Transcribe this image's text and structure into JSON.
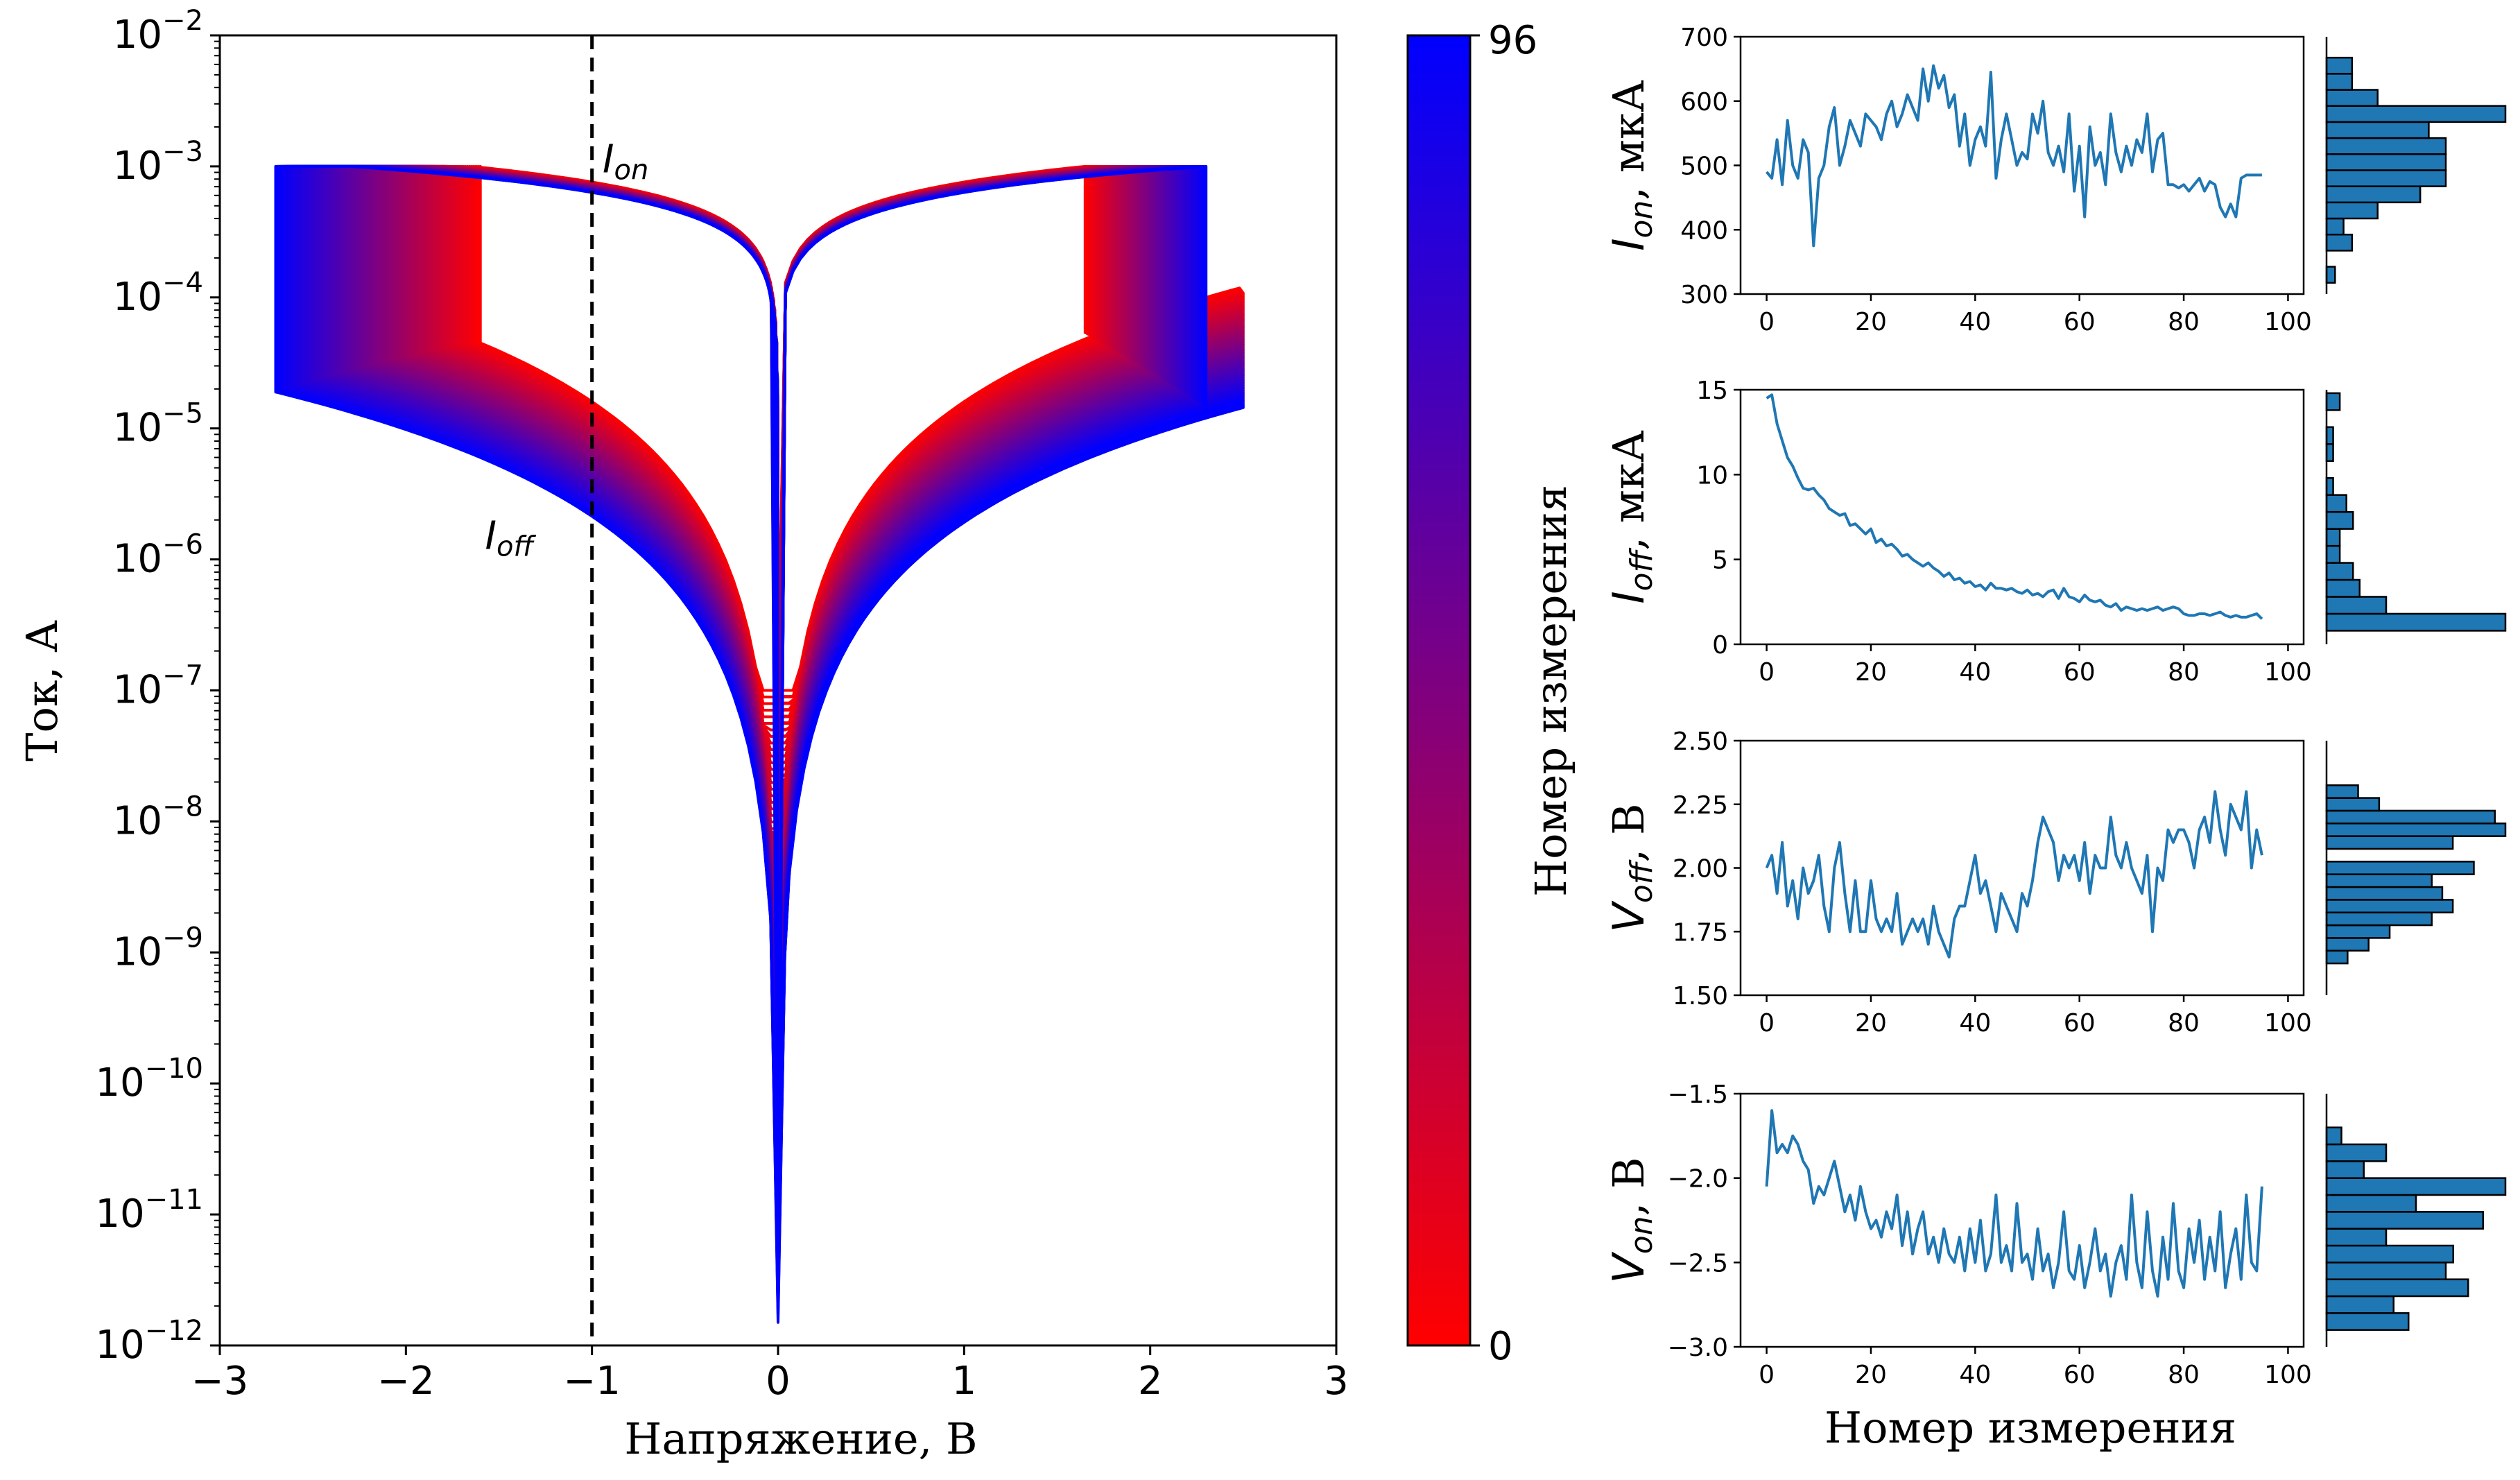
{
  "colors": {
    "series_start": "#ff0000",
    "series_end": "#0000ff",
    "line_blue": "#1f77b4",
    "hist_fill": "#1f77b4",
    "axis": "#000000",
    "marker_line": "#000000"
  },
  "chart_data": [
    {
      "id": "iv-main",
      "type": "line",
      "xlabel": "Напряжение, В",
      "ylabel": "Ток, А",
      "xlim": [
        -3,
        3
      ],
      "ylim": [
        1e-12,
        0.01
      ],
      "yscale": "log",
      "xticks": [
        {
          "v": -3,
          "label": "−3"
        },
        {
          "v": -2,
          "label": "−2"
        },
        {
          "v": -1,
          "label": "−1"
        },
        {
          "v": 0,
          "label": "0"
        },
        {
          "v": 1,
          "label": "1"
        },
        {
          "v": 2,
          "label": "2"
        },
        {
          "v": 3,
          "label": "3"
        }
      ],
      "yticks": [
        {
          "exp": -12,
          "base": "10",
          "sup": "−12"
        },
        {
          "exp": -11,
          "base": "10",
          "sup": "−11"
        },
        {
          "exp": -10,
          "base": "10",
          "sup": "−10"
        },
        {
          "exp": -9,
          "base": "10",
          "sup": "−9"
        },
        {
          "exp": -8,
          "base": "10",
          "sup": "−8"
        },
        {
          "exp": -7,
          "base": "10",
          "sup": "−7"
        },
        {
          "exp": -6,
          "base": "10",
          "sup": "−6"
        },
        {
          "exp": -5,
          "base": "10",
          "sup": "−5"
        },
        {
          "exp": -4,
          "base": "10",
          "sup": "−4"
        },
        {
          "exp": -3,
          "base": "10",
          "sup": "−3"
        },
        {
          "exp": -2,
          "base": "10",
          "sup": "−2"
        }
      ],
      "vline": {
        "x": -1,
        "style": "dashed"
      },
      "annotations": [
        {
          "base": "I",
          "sub": "on",
          "x": -0.98,
          "y": 0.0009
        },
        {
          "base": "I",
          "sub": "off",
          "x": -1.5,
          "y": 1.2e-06
        }
      ],
      "series_count": 97,
      "color_map": "red-to-blue",
      "model": {
        "set_voltage": {
          "first": -1.6,
          "last": -2.7
        },
        "reset_voltage": {
          "first": 1.65,
          "last": 2.3
        },
        "compliance_current": 0.001,
        "off_current_at_2_5V": {
          "first": 0.00012,
          "last": 1.6e-05
        },
        "min_current_near_0V": {
          "first": 1e-07,
          "last": 1.5e-12
        }
      }
    },
    {
      "id": "colorbar",
      "type": "colorbar",
      "label": "Номер измерения",
      "range": [
        0,
        96
      ],
      "tick_labels": [
        "0",
        "96"
      ]
    },
    {
      "id": "ion",
      "type": "line",
      "ylabel_base": "I",
      "ylabel_sub": "on",
      "ylabel_unit": ", мкА",
      "xlim": [
        -5,
        103
      ],
      "ylim": [
        300,
        700
      ],
      "xticks": [
        0,
        20,
        40,
        60,
        80,
        100
      ],
      "yticks": [
        300,
        400,
        500,
        600,
        700
      ],
      "x": [
        0,
        1,
        2,
        3,
        4,
        5,
        6,
        7,
        8,
        9,
        10,
        11,
        12,
        13,
        14,
        15,
        16,
        17,
        18,
        19,
        20,
        21,
        22,
        23,
        24,
        25,
        26,
        27,
        28,
        29,
        30,
        31,
        32,
        33,
        34,
        35,
        36,
        37,
        38,
        39,
        40,
        41,
        42,
        43,
        44,
        45,
        46,
        47,
        48,
        49,
        50,
        51,
        52,
        53,
        54,
        55,
        56,
        57,
        58,
        59,
        60,
        61,
        62,
        63,
        64,
        65,
        66,
        67,
        68,
        69,
        70,
        71,
        72,
        73,
        74,
        75,
        76,
        77,
        78,
        79,
        80,
        81,
        82,
        83,
        84,
        85,
        86,
        87,
        88,
        89,
        90,
        91,
        92,
        93,
        94,
        95
      ],
      "values": [
        490,
        480,
        540,
        470,
        570,
        500,
        480,
        540,
        520,
        375,
        480,
        500,
        560,
        590,
        500,
        530,
        570,
        550,
        530,
        580,
        570,
        560,
        540,
        580,
        600,
        560,
        580,
        610,
        590,
        570,
        650,
        600,
        655,
        620,
        640,
        590,
        610,
        530,
        580,
        500,
        540,
        560,
        530,
        645,
        480,
        540,
        580,
        540,
        500,
        520,
        510,
        580,
        550,
        600,
        520,
        500,
        530,
        490,
        580,
        460,
        530,
        420,
        560,
        500,
        520,
        470,
        580,
        520,
        490,
        530,
        500,
        540,
        520,
        580,
        490,
        540,
        550,
        470,
        470,
        465,
        470,
        460,
        470,
        480,
        460,
        475,
        470,
        435,
        420,
        440,
        420,
        480,
        485,
        485,
        485,
        485
      ],
      "hist": {
        "orientation": "horizontal",
        "bin_centers": [
          330,
          355,
          380,
          405,
          430,
          455,
          480,
          505,
          530,
          555,
          580,
          605,
          630,
          655
        ],
        "counts": [
          1,
          0,
          3,
          2,
          6,
          11,
          14,
          14,
          14,
          12,
          21,
          6,
          3,
          3
        ]
      }
    },
    {
      "id": "ioff",
      "type": "line",
      "ylabel_base": "I",
      "ylabel_sub": "off",
      "ylabel_unit": ", мкА",
      "xlim": [
        -5,
        103
      ],
      "ylim": [
        0,
        15
      ],
      "xticks": [
        0,
        20,
        40,
        60,
        80,
        100
      ],
      "yticks": [
        0,
        5,
        10,
        15
      ],
      "x": [
        0,
        1,
        2,
        3,
        4,
        5,
        6,
        7,
        8,
        9,
        10,
        11,
        12,
        13,
        14,
        15,
        16,
        17,
        18,
        19,
        20,
        21,
        22,
        23,
        24,
        25,
        26,
        27,
        28,
        29,
        30,
        31,
        32,
        33,
        34,
        35,
        36,
        37,
        38,
        39,
        40,
        41,
        42,
        43,
        44,
        45,
        46,
        47,
        48,
        49,
        50,
        51,
        52,
        53,
        54,
        55,
        56,
        57,
        58,
        59,
        60,
        61,
        62,
        63,
        64,
        65,
        66,
        67,
        68,
        69,
        70,
        71,
        72,
        73,
        74,
        75,
        76,
        77,
        78,
        79,
        80,
        81,
        82,
        83,
        84,
        85,
        86,
        87,
        88,
        89,
        90,
        91,
        92,
        93,
        94,
        95
      ],
      "values": [
        14.5,
        14.7,
        13.0,
        12.0,
        11.0,
        10.5,
        9.8,
        9.2,
        9.1,
        9.2,
        8.8,
        8.5,
        8.0,
        7.8,
        7.6,
        7.7,
        7.0,
        7.1,
        6.8,
        6.5,
        6.8,
        6.0,
        6.2,
        5.8,
        5.9,
        5.6,
        5.2,
        5.3,
        5.0,
        4.8,
        4.6,
        4.8,
        4.5,
        4.3,
        4.0,
        4.2,
        3.8,
        3.9,
        3.6,
        3.7,
        3.4,
        3.5,
        3.2,
        3.6,
        3.3,
        3.3,
        3.2,
        3.3,
        3.1,
        3.0,
        3.2,
        2.9,
        3.0,
        2.8,
        3.1,
        3.2,
        2.7,
        3.3,
        2.8,
        2.7,
        2.5,
        2.9,
        2.6,
        2.5,
        2.6,
        2.3,
        2.2,
        2.4,
        2.0,
        2.2,
        2.1,
        2.0,
        2.1,
        2.0,
        2.1,
        2.2,
        2.0,
        2.1,
        2.2,
        2.1,
        1.8,
        1.7,
        1.7,
        1.8,
        1.8,
        1.7,
        1.8,
        1.9,
        1.7,
        1.6,
        1.7,
        1.6,
        1.6,
        1.7,
        1.8,
        1.5
      ],
      "hist": {
        "orientation": "horizontal",
        "bin_centers": [
          1.3,
          2.3,
          3.3,
          4.3,
          5.3,
          6.3,
          7.3,
          8.3,
          9.3,
          10.3,
          11.3,
          12.3,
          13.3,
          14.3
        ],
        "counts": [
          27,
          9,
          5,
          4,
          2,
          2,
          4,
          3,
          1,
          0,
          1,
          1,
          0,
          2
        ]
      }
    },
    {
      "id": "voff",
      "type": "line",
      "ylabel_base": "V",
      "ylabel_sub": "off",
      "ylabel_unit": ", В",
      "xlim": [
        -5,
        103
      ],
      "ylim": [
        1.5,
        2.5
      ],
      "xticks": [
        0,
        20,
        40,
        60,
        80,
        100
      ],
      "yticks": [
        {
          "v": 1.5,
          "label": "1.50"
        },
        {
          "v": 1.75,
          "label": "1.75"
        },
        {
          "v": 2.0,
          "label": "2.00"
        },
        {
          "v": 2.25,
          "label": "2.25"
        },
        {
          "v": 2.5,
          "label": "2.50"
        }
      ],
      "x": [
        0,
        1,
        2,
        3,
        4,
        5,
        6,
        7,
        8,
        9,
        10,
        11,
        12,
        13,
        14,
        15,
        16,
        17,
        18,
        19,
        20,
        21,
        22,
        23,
        24,
        25,
        26,
        27,
        28,
        29,
        30,
        31,
        32,
        33,
        34,
        35,
        36,
        37,
        38,
        39,
        40,
        41,
        42,
        43,
        44,
        45,
        46,
        47,
        48,
        49,
        50,
        51,
        52,
        53,
        54,
        55,
        56,
        57,
        58,
        59,
        60,
        61,
        62,
        63,
        64,
        65,
        66,
        67,
        68,
        69,
        70,
        71,
        72,
        73,
        74,
        75,
        76,
        77,
        78,
        79,
        80,
        81,
        82,
        83,
        84,
        85,
        86,
        87,
        88,
        89,
        90,
        91,
        92,
        93,
        94,
        95
      ],
      "values": [
        2.0,
        2.05,
        1.9,
        2.1,
        1.85,
        1.95,
        1.8,
        2.0,
        1.9,
        1.95,
        2.05,
        1.85,
        1.75,
        2.0,
        2.1,
        1.9,
        1.75,
        1.95,
        1.75,
        1.75,
        1.95,
        1.8,
        1.75,
        1.8,
        1.75,
        1.9,
        1.7,
        1.75,
        1.8,
        1.75,
        1.8,
        1.7,
        1.85,
        1.75,
        1.7,
        1.65,
        1.8,
        1.85,
        1.85,
        1.95,
        2.05,
        1.9,
        1.95,
        1.85,
        1.75,
        1.9,
        1.85,
        1.8,
        1.75,
        1.9,
        1.85,
        1.95,
        2.1,
        2.2,
        2.15,
        2.1,
        1.95,
        2.05,
        2.0,
        2.05,
        1.95,
        2.1,
        1.9,
        2.05,
        2.0,
        2.0,
        2.2,
        2.05,
        2.0,
        2.1,
        2.0,
        1.95,
        1.9,
        2.05,
        1.75,
        2.0,
        1.95,
        2.15,
        2.1,
        2.15,
        2.15,
        2.1,
        2.0,
        2.15,
        2.2,
        2.1,
        2.3,
        2.15,
        2.05,
        2.25,
        2.2,
        2.15,
        2.3,
        2.0,
        2.15,
        2.05
      ],
      "hist": {
        "orientation": "horizontal",
        "bin_centers": [
          1.65,
          1.7,
          1.75,
          1.8,
          1.85,
          1.9,
          1.95,
          2.0,
          2.05,
          2.1,
          2.15,
          2.2,
          2.25,
          2.3
        ],
        "counts": [
          2,
          4,
          6,
          10,
          12,
          11,
          10,
          14,
          0,
          12,
          17,
          16,
          5,
          3
        ]
      }
    },
    {
      "id": "von",
      "type": "line",
      "ylabel_base": "V",
      "ylabel_sub": "on",
      "ylabel_unit": ", В",
      "xlabel": "Номер измерения",
      "xlim": [
        -5,
        103
      ],
      "ylim": [
        -3.0,
        -1.5
      ],
      "xticks": [
        0,
        20,
        40,
        60,
        80,
        100
      ],
      "yticks": [
        {
          "v": -3.0,
          "label": "−3.0"
        },
        {
          "v": -2.5,
          "label": "−2.5"
        },
        {
          "v": -2.0,
          "label": "−2.0"
        },
        {
          "v": -1.5,
          "label": "−1.5"
        }
      ],
      "x": [
        0,
        1,
        2,
        3,
        4,
        5,
        6,
        7,
        8,
        9,
        10,
        11,
        12,
        13,
        14,
        15,
        16,
        17,
        18,
        19,
        20,
        21,
        22,
        23,
        24,
        25,
        26,
        27,
        28,
        29,
        30,
        31,
        32,
        33,
        34,
        35,
        36,
        37,
        38,
        39,
        40,
        41,
        42,
        43,
        44,
        45,
        46,
        47,
        48,
        49,
        50,
        51,
        52,
        53,
        54,
        55,
        56,
        57,
        58,
        59,
        60,
        61,
        62,
        63,
        64,
        65,
        66,
        67,
        68,
        69,
        70,
        71,
        72,
        73,
        74,
        75,
        76,
        77,
        78,
        79,
        80,
        81,
        82,
        83,
        84,
        85,
        86,
        87,
        88,
        89,
        90,
        91,
        92,
        93,
        94,
        95
      ],
      "values": [
        -2.05,
        -1.6,
        -1.85,
        -1.8,
        -1.85,
        -1.75,
        -1.8,
        -1.9,
        -1.95,
        -2.15,
        -2.05,
        -2.1,
        -2.0,
        -1.9,
        -2.05,
        -2.2,
        -2.1,
        -2.25,
        -2.05,
        -2.2,
        -2.3,
        -2.25,
        -2.35,
        -2.2,
        -2.3,
        -2.1,
        -2.4,
        -2.2,
        -2.45,
        -2.3,
        -2.2,
        -2.45,
        -2.35,
        -2.5,
        -2.3,
        -2.45,
        -2.5,
        -2.35,
        -2.55,
        -2.3,
        -2.5,
        -2.25,
        -2.55,
        -2.45,
        -2.1,
        -2.5,
        -2.4,
        -2.55,
        -2.15,
        -2.5,
        -2.45,
        -2.6,
        -2.3,
        -2.55,
        -2.45,
        -2.65,
        -2.5,
        -2.2,
        -2.55,
        -2.6,
        -2.4,
        -2.65,
        -2.5,
        -2.3,
        -2.55,
        -2.45,
        -2.7,
        -2.5,
        -2.4,
        -2.6,
        -2.1,
        -2.5,
        -2.65,
        -2.2,
        -2.55,
        -2.7,
        -2.35,
        -2.6,
        -2.15,
        -2.55,
        -2.65,
        -2.3,
        -2.5,
        -2.25,
        -2.6,
        -2.35,
        -2.55,
        -2.2,
        -2.65,
        -2.45,
        -2.3,
        -2.6,
        -2.1,
        -2.5,
        -2.55,
        -2.05
      ],
      "hist": {
        "orientation": "horizontal",
        "bin_centers": [
          -2.85,
          -2.75,
          -2.65,
          -2.55,
          -2.45,
          -2.35,
          -2.25,
          -2.15,
          -2.05,
          -1.95,
          -1.85,
          -1.75,
          -1.65
        ],
        "counts": [
          11,
          9,
          19,
          16,
          17,
          8,
          21,
          12,
          24,
          5,
          8,
          2,
          0,
          2
        ]
      }
    }
  ]
}
